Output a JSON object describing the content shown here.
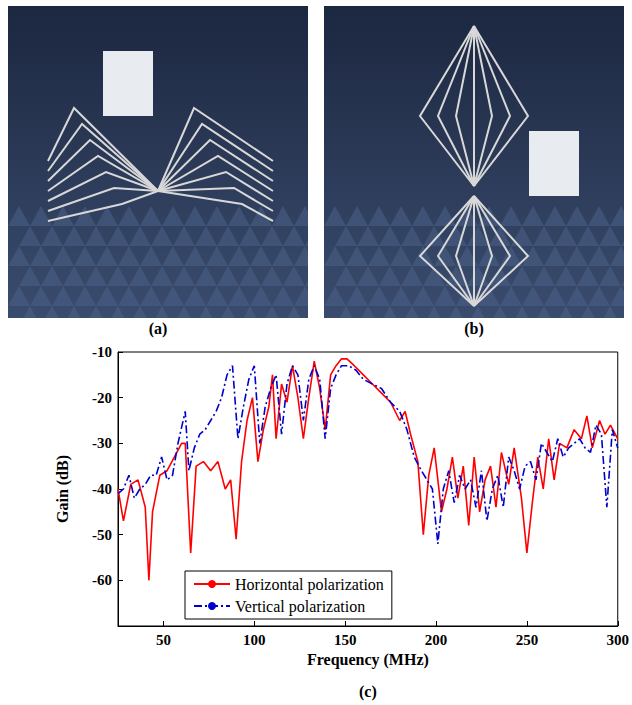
{
  "chart_data": {
    "type": "line",
    "panel_labels": [
      "(a)",
      "(b)",
      "(c)"
    ],
    "xlabel": "Frequency (MHz)",
    "ylabel": "Gain (dB)",
    "xlim": [
      25,
      300
    ],
    "xticks": [
      50,
      100,
      150,
      200,
      250,
      300
    ],
    "ylim": [
      -70,
      -10
    ],
    "yticks": [
      -60,
      -50,
      -40,
      -30,
      -20,
      -10
    ],
    "grid": false,
    "legend": "bottom",
    "series": [
      {
        "name": "Horizontal polarization",
        "color": "#ff0000",
        "line_style": "solid",
        "x": [
          25,
          28,
          32,
          36,
          40,
          42,
          44,
          48,
          52,
          56,
          60,
          62,
          65,
          68,
          72,
          76,
          80,
          84,
          87,
          90,
          93,
          96,
          99,
          102,
          105,
          108,
          110,
          112,
          115,
          118,
          121,
          124,
          127,
          130,
          133,
          136,
          139,
          142,
          145,
          148,
          151,
          155,
          160,
          165,
          170,
          175,
          180,
          183,
          186,
          190,
          193,
          196,
          199,
          203,
          206,
          209,
          212,
          215,
          218,
          221,
          224,
          227,
          230,
          233,
          236,
          240,
          243,
          247,
          250,
          253,
          256,
          259,
          262,
          265,
          268,
          272,
          276,
          280,
          283,
          286,
          290,
          293,
          296,
          300
        ],
        "values": [
          -40,
          -47,
          -39,
          -38,
          -44,
          -60,
          -45,
          -37,
          -36,
          -33,
          -30,
          -30,
          -54,
          -35,
          -34,
          -36,
          -34,
          -40,
          -38,
          -51,
          -34,
          -25,
          -20,
          -34,
          -27,
          -22,
          -15,
          -29,
          -17,
          -21,
          -13,
          -20,
          -29,
          -20,
          -12,
          -18,
          -27,
          -15,
          -13,
          -11.5,
          -11.5,
          -13,
          -15,
          -17,
          -19,
          -21,
          -25,
          -23,
          -28,
          -34,
          -50,
          -37,
          -31,
          -45,
          -40,
          -33,
          -42,
          -35,
          -48,
          -33,
          -45,
          -38,
          -35,
          -44,
          -32,
          -39,
          -31,
          -42,
          -54,
          -43,
          -33,
          -40,
          -29,
          -38,
          -30,
          -31,
          -27,
          -29,
          -24,
          -31,
          -25,
          -28,
          -26,
          -29
        ]
      },
      {
        "name": "Vertical polarization",
        "color": "#0000cc",
        "line_style": "dashdot",
        "x": [
          25,
          28,
          31,
          34,
          37,
          40,
          43,
          46,
          49,
          52,
          55,
          58,
          62,
          64,
          67,
          70,
          73,
          76,
          79,
          82,
          85,
          88,
          91,
          94,
          97,
          100,
          103,
          106,
          109,
          112,
          115,
          118,
          121,
          124,
          127,
          130,
          133,
          136,
          139,
          142,
          145,
          148,
          152,
          156,
          160,
          165,
          170,
          175,
          180,
          184,
          188,
          192,
          195,
          198,
          201,
          204,
          207,
          210,
          213,
          216,
          219,
          222,
          225,
          228,
          231,
          234,
          237,
          240,
          243,
          246,
          249,
          252,
          255,
          258,
          261,
          264,
          267,
          270,
          273,
          276,
          279,
          282,
          285,
          288,
          291,
          294,
          297,
          300
        ],
        "values": [
          -41,
          -40,
          -37,
          -42,
          -40,
          -39,
          -37,
          -37,
          -33,
          -38,
          -37,
          -30,
          -23,
          -36,
          -31,
          -28,
          -27,
          -25,
          -23,
          -20,
          -15,
          -13,
          -29,
          -22,
          -16,
          -13,
          -30,
          -22,
          -18,
          -15,
          -28,
          -17,
          -13,
          -15,
          -25,
          -16,
          -13,
          -16,
          -29,
          -18,
          -15,
          -13,
          -13,
          -14,
          -16,
          -17,
          -18,
          -21,
          -23,
          -27,
          -33,
          -36,
          -38,
          -40,
          -52,
          -40,
          -36,
          -43,
          -37,
          -40,
          -38,
          -44,
          -36,
          -47,
          -40,
          -37,
          -44,
          -33,
          -36,
          -40,
          -35,
          -34,
          -38,
          -30,
          -32,
          -34,
          -29,
          -33,
          -31,
          -30,
          -29,
          -31,
          -32,
          -26,
          -28,
          -44,
          -27,
          -31
        ]
      }
    ]
  }
}
